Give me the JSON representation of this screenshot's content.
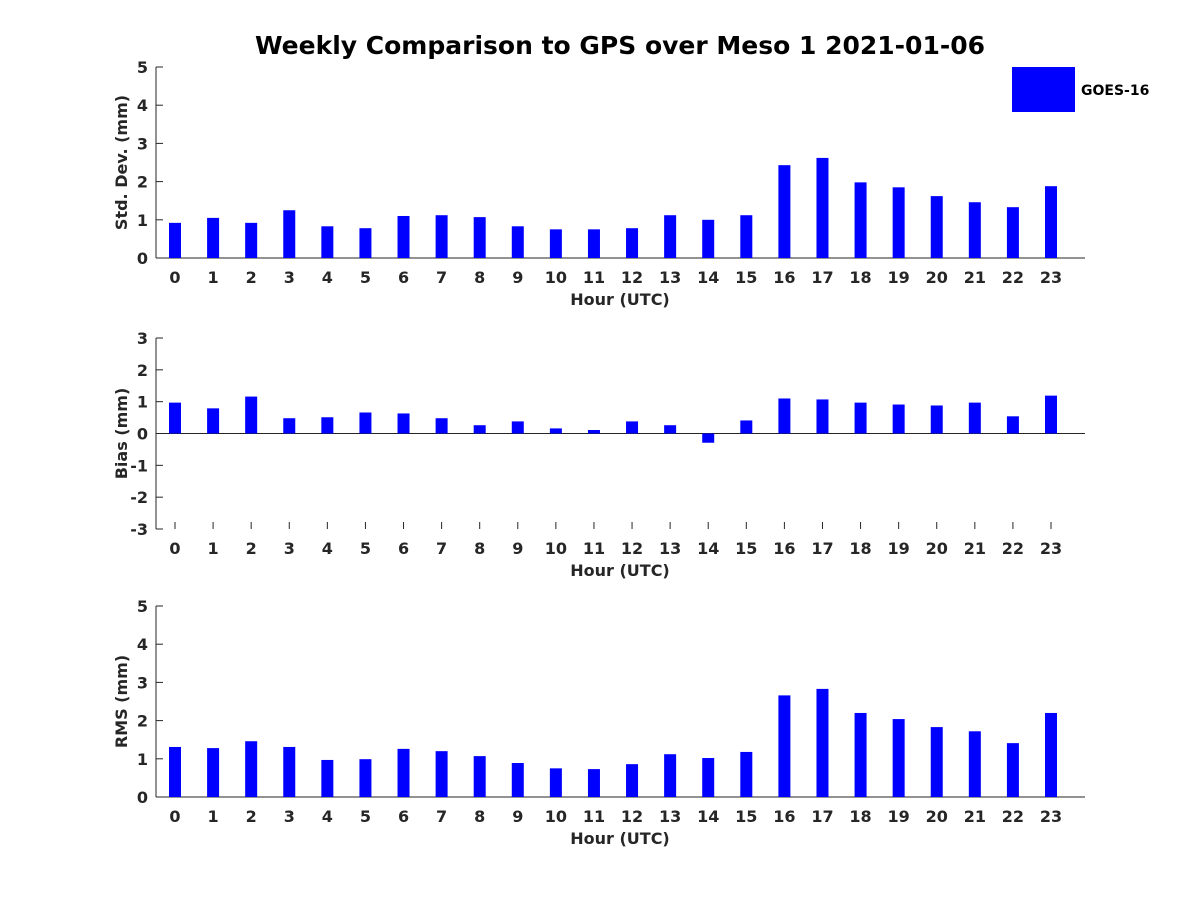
{
  "colors": {
    "bar": "#0000ff",
    "axis": "#262626"
  },
  "chart_data": {
    "title": "Weekly Comparison to GPS over Meso 1 2021-01-06",
    "legend": {
      "label": "GOES-16",
      "placement": "top-right"
    },
    "categories": [
      "0",
      "1",
      "2",
      "3",
      "4",
      "5",
      "6",
      "7",
      "8",
      "9",
      "10",
      "11",
      "12",
      "13",
      "14",
      "15",
      "16",
      "17",
      "18",
      "19",
      "20",
      "21",
      "22",
      "23"
    ],
    "panels": [
      {
        "type": "bar",
        "series_name": "GOES-16",
        "ylabel": "Std. Dev. (mm)",
        "xlabel": "Hour (UTC)",
        "ylim": [
          0,
          5
        ],
        "yticks": [
          "0",
          "1",
          "2",
          "3",
          "4",
          "5"
        ],
        "values": [
          0.92,
          1.05,
          0.92,
          1.25,
          0.83,
          0.78,
          1.1,
          1.12,
          1.07,
          0.83,
          0.75,
          0.75,
          0.78,
          1.12,
          1.0,
          1.12,
          2.43,
          2.62,
          1.98,
          1.85,
          1.62,
          1.46,
          1.33,
          1.88
        ]
      },
      {
        "type": "bar",
        "series_name": "GOES-16",
        "ylabel": "Bias (mm)",
        "xlabel": "Hour (UTC)",
        "ylim": [
          -3,
          3
        ],
        "yticks": [
          "-3",
          "-2",
          "-1",
          "0",
          "1",
          "2",
          "3"
        ],
        "values": [
          0.97,
          0.79,
          1.16,
          0.48,
          0.51,
          0.66,
          0.63,
          0.48,
          0.26,
          0.38,
          0.16,
          0.11,
          0.38,
          0.26,
          -0.29,
          0.41,
          1.1,
          1.07,
          0.97,
          0.91,
          0.88,
          0.97,
          0.54,
          1.19
        ]
      },
      {
        "type": "bar",
        "series_name": "GOES-16",
        "ylabel": "RMS (mm)",
        "xlabel": "Hour (UTC)",
        "ylim": [
          0,
          5
        ],
        "yticks": [
          "0",
          "1",
          "2",
          "3",
          "4",
          "5"
        ],
        "values": [
          1.31,
          1.28,
          1.46,
          1.31,
          0.97,
          0.99,
          1.26,
          1.2,
          1.07,
          0.89,
          0.75,
          0.73,
          0.86,
          1.12,
          1.02,
          1.18,
          2.66,
          2.83,
          2.2,
          2.04,
          1.83,
          1.72,
          1.41,
          2.2
        ]
      }
    ]
  }
}
